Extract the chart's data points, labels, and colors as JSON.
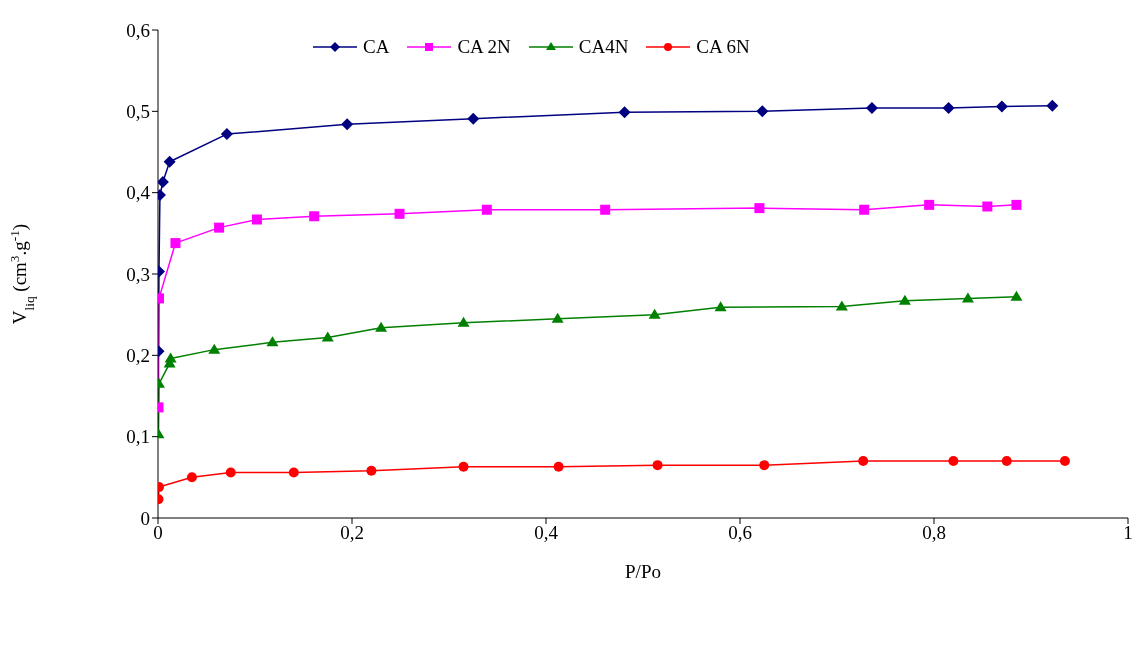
{
  "chart_data": {
    "type": "line",
    "xlabel": "P/Po",
    "ylabel": "V$_{liq}$ (cm$^{3}$.g$^{-1}$)",
    "xlim": [
      0,
      1
    ],
    "xticks": [
      0,
      {
        "value": 0.2,
        "label": "0,2"
      },
      {
        "value": 0.4,
        "label": "0,4"
      },
      {
        "value": 0.6,
        "label": "0,6"
      },
      {
        "value": 0.8,
        "label": "0,8"
      },
      1
    ],
    "ylim": [
      0,
      0.6
    ],
    "yticks": [
      0,
      {
        "value": 0.1,
        "label": "0,1"
      },
      {
        "value": 0.2,
        "label": "0,2"
      },
      {
        "value": 0.3,
        "label": "0,3"
      },
      {
        "value": 0.4,
        "label": "0,4"
      },
      {
        "value": 0.5,
        "label": "0,5"
      },
      {
        "value": 0.6,
        "label": "0,6"
      }
    ],
    "grid": false,
    "legend": "top",
    "series": [
      {
        "name": "CA",
        "color": "#000080",
        "marker": "diamond",
        "x": [
          0.0005,
          0.001,
          0.002,
          0.005,
          0.012,
          0.071,
          0.195,
          0.325,
          0.481,
          0.623,
          0.736,
          0.815,
          0.87,
          0.922
        ],
        "values": [
          0.205,
          0.303,
          0.397,
          0.413,
          0.438,
          0.472,
          0.484,
          0.491,
          0.499,
          0.5,
          0.504,
          0.504,
          0.506,
          0.507
        ]
      },
      {
        "name": "CA 2N",
        "color": "#ff00ff",
        "marker": "square",
        "x": [
          0.0005,
          0.001,
          0.018,
          0.063,
          0.102,
          0.161,
          0.249,
          0.339,
          0.461,
          0.62,
          0.728,
          0.795,
          0.855,
          0.885
        ],
        "values": [
          0.136,
          0.27,
          0.338,
          0.357,
          0.367,
          0.371,
          0.374,
          0.379,
          0.379,
          0.381,
          0.379,
          0.385,
          0.383,
          0.385
        ]
      },
      {
        "name": "CA4N",
        "color": "#008000",
        "marker": "triangle",
        "x": [
          0.0005,
          0.001,
          0.012,
          0.013,
          0.058,
          0.118,
          0.175,
          0.23,
          0.315,
          0.412,
          0.512,
          0.58,
          0.705,
          0.77,
          0.835,
          0.885
        ],
        "values": [
          0.103,
          0.165,
          0.19,
          0.196,
          0.207,
          0.216,
          0.222,
          0.234,
          0.24,
          0.245,
          0.25,
          0.259,
          0.26,
          0.267,
          0.27,
          0.272
        ]
      },
      {
        "name": "CA 6N",
        "color": "#ff0000",
        "marker": "circle",
        "x": [
          0.0005,
          0.001,
          0.035,
          0.075,
          0.14,
          0.22,
          0.315,
          0.413,
          0.515,
          0.625,
          0.727,
          0.82,
          0.875,
          0.935
        ],
        "values": [
          0.023,
          0.038,
          0.05,
          0.056,
          0.056,
          0.058,
          0.063,
          0.063,
          0.065,
          0.065,
          0.07,
          0.07,
          0.07,
          0.07
        ]
      }
    ]
  }
}
